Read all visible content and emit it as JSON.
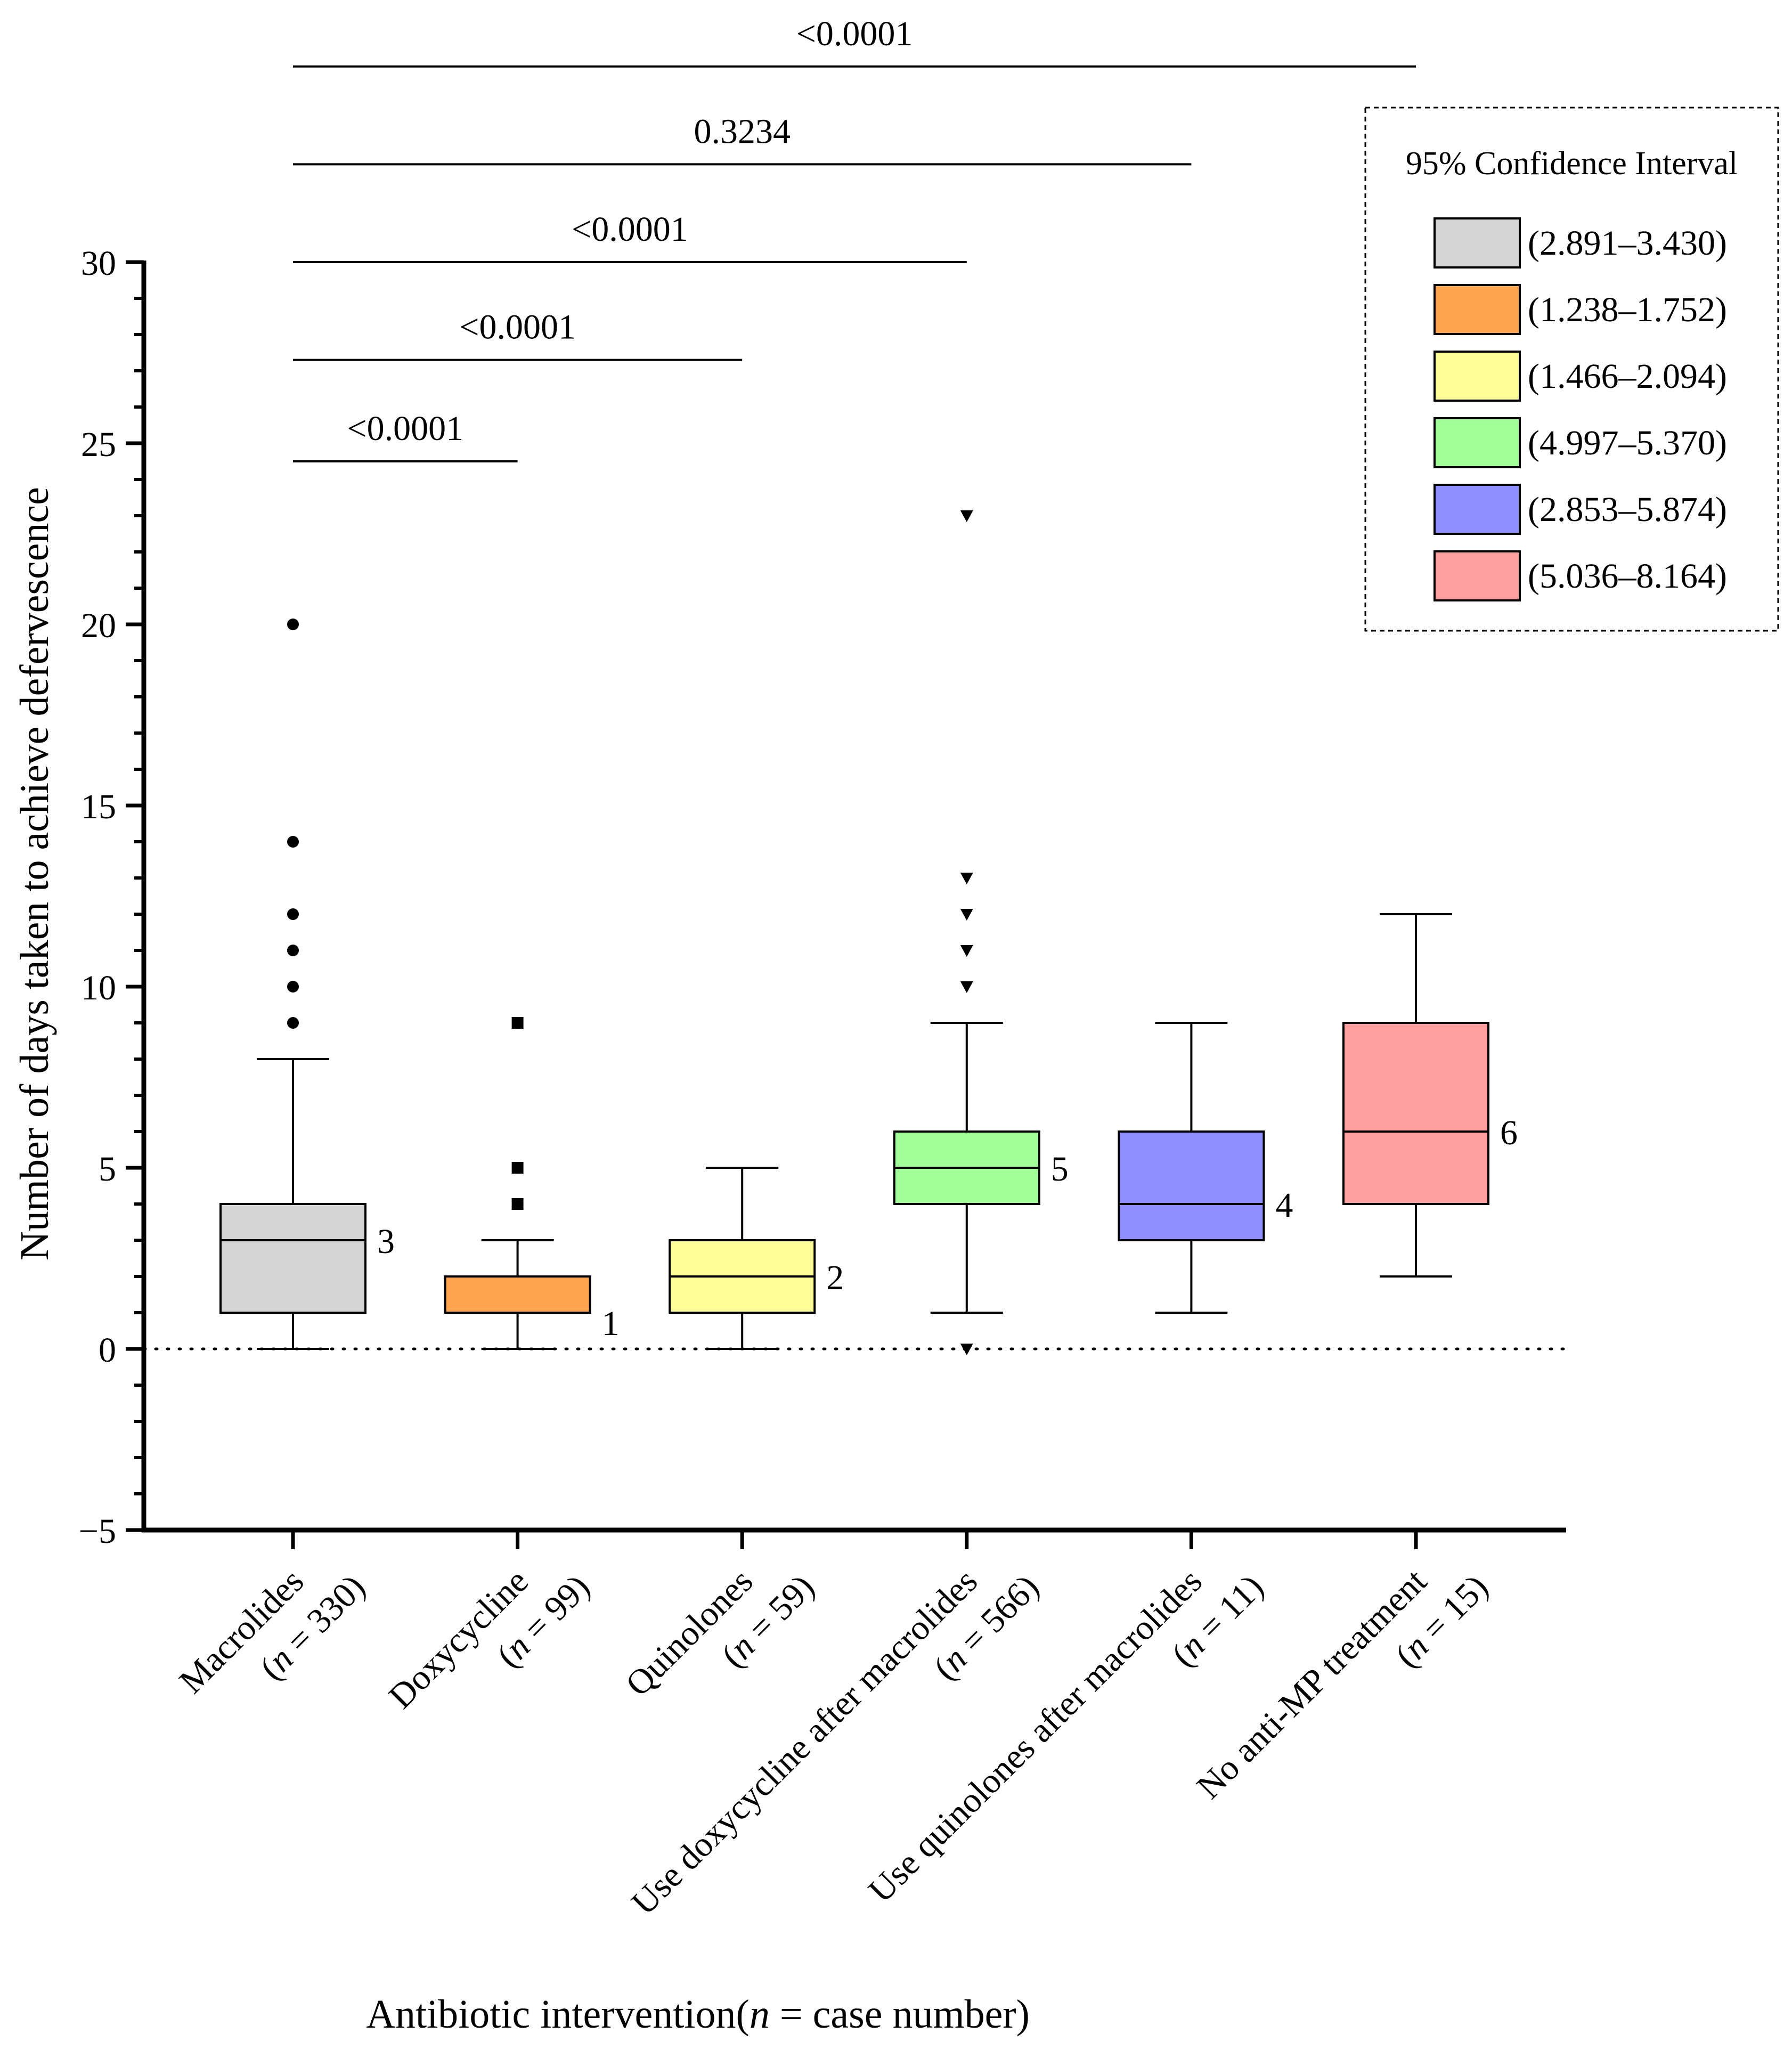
{
  "chart_data": {
    "type": "box",
    "ylabel": "Number of days taken to achieve defervescence",
    "xlabel_parts": [
      "Antibiotic intervention(",
      "n",
      " = case number)"
    ],
    "ylim": [
      -5,
      30
    ],
    "yticks": [
      -5,
      0,
      5,
      10,
      15,
      20,
      25,
      30
    ],
    "reference_line": {
      "y": 0,
      "style": "dotted"
    },
    "groups": [
      {
        "name": "Macrolides",
        "n_label": "(n = 330)",
        "n_prefix": "(",
        "n_var": "n",
        "n_suffix": " = 330)",
        "color": "#d4d4d4",
        "whisker_low": 0,
        "q1": 1,
        "median": 3,
        "q3": 4,
        "whisker_high": 8,
        "median_label": "3",
        "outlier_marker": "circle",
        "outliers": [
          9,
          10,
          11,
          12,
          14,
          20
        ]
      },
      {
        "name": "Doxycycline",
        "n_label": "(n = 99)",
        "n_prefix": "(",
        "n_var": "n",
        "n_suffix": " = 99)",
        "color": "#ffa54f",
        "whisker_low": 0,
        "q1": 1,
        "median": 1,
        "q3": 2,
        "whisker_high": 3,
        "median_label": "1",
        "outlier_marker": "square",
        "outliers": [
          4,
          5,
          9
        ]
      },
      {
        "name": "Quinolones",
        "n_label": "(n = 59)",
        "n_prefix": "(",
        "n_var": "n",
        "n_suffix": " = 59)",
        "color": "#ffff99",
        "whisker_low": 0,
        "q1": 1,
        "median": 2,
        "q3": 3,
        "whisker_high": 5,
        "median_label": "2",
        "outlier_marker": "none",
        "outliers": []
      },
      {
        "name": "Use doxycycline after macrolides",
        "n_label": "(n = 566)",
        "n_prefix": "(",
        "n_var": "n",
        "n_suffix": " = 566)",
        "color": "#a2ff99",
        "whisker_low": 1,
        "q1": 4,
        "median": 5,
        "q3": 6,
        "whisker_high": 9,
        "median_label": "5",
        "outlier_marker": "triangle-down",
        "outliers": [
          0,
          10,
          11,
          12,
          13,
          23
        ]
      },
      {
        "name": "Use quinolones after macrolides",
        "n_label": "(n = 11)",
        "n_prefix": "(",
        "n_var": "n",
        "n_suffix": " = 11)",
        "color": "#8f8fff",
        "whisker_low": 1,
        "q1": 3,
        "median": 4,
        "q3": 6,
        "whisker_high": 9,
        "median_label": "4",
        "outlier_marker": "none",
        "outliers": []
      },
      {
        "name": "No anti-MP treatment",
        "n_label": "(n = 15)",
        "n_prefix": "(",
        "n_var": "n",
        "n_suffix": " = 15)",
        "color": "#ffa0a0",
        "whisker_low": 2,
        "q1": 4,
        "median": 6,
        "q3": 9,
        "whisker_high": 12,
        "median_label": "6",
        "outlier_marker": "none",
        "outliers": []
      }
    ],
    "comparisons": [
      {
        "from": 0,
        "to": 1,
        "y": 24.5,
        "label": "<0.0001"
      },
      {
        "from": 0,
        "to": 2,
        "y": 27.3,
        "label": "<0.0001"
      },
      {
        "from": 0,
        "to": 3,
        "y": 30.0,
        "label": "<0.0001"
      },
      {
        "from": 0,
        "to": 4,
        "y": 32.7,
        "label": "0.3234"
      },
      {
        "from": 0,
        "to": 5,
        "y": 35.4,
        "label": "<0.0001"
      }
    ],
    "legend": {
      "title": "95% Confidence Interval",
      "position": "top-right",
      "entries": [
        {
          "label": "(2.891–3.430)",
          "color": "#d4d4d4"
        },
        {
          "label": "(1.238–1.752)",
          "color": "#ffa54f"
        },
        {
          "label": "(1.466–2.094)",
          "color": "#ffff99"
        },
        {
          "label": "(4.997–5.370)",
          "color": "#a2ff99"
        },
        {
          "label": "(2.853–5.874)",
          "color": "#8f8fff"
        },
        {
          "label": "(5.036–8.164)",
          "color": "#ffa0a0"
        }
      ]
    }
  }
}
